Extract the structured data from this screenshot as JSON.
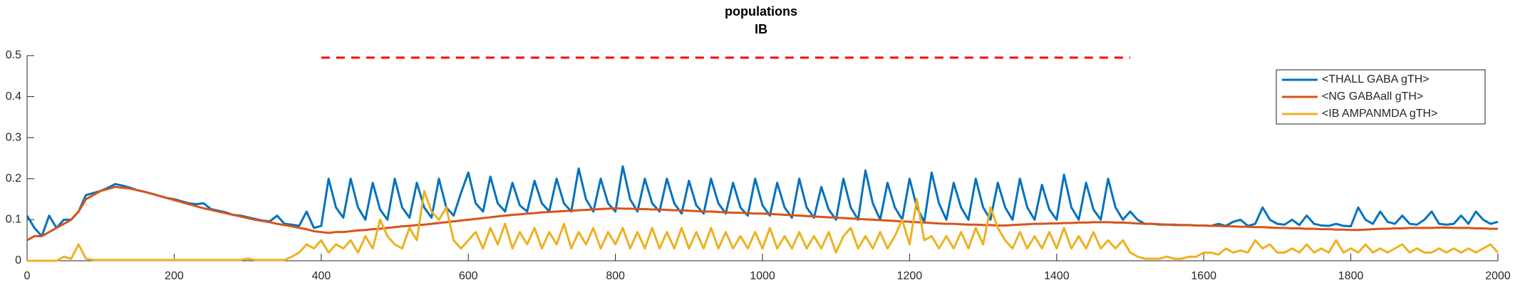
{
  "chart_data": {
    "type": "line",
    "title": "populations",
    "subtitle": "IB",
    "x": [
      0,
      10,
      20,
      30,
      40,
      50,
      60,
      70,
      80,
      90,
      100,
      110,
      120,
      130,
      140,
      150,
      160,
      170,
      180,
      190,
      200,
      210,
      220,
      230,
      240,
      250,
      260,
      270,
      280,
      290,
      300,
      310,
      320,
      330,
      340,
      350,
      360,
      370,
      380,
      390,
      400,
      410,
      420,
      430,
      440,
      450,
      460,
      470,
      480,
      490,
      500,
      510,
      520,
      530,
      540,
      550,
      560,
      570,
      580,
      590,
      600,
      610,
      620,
      630,
      640,
      650,
      660,
      670,
      680,
      690,
      700,
      710,
      720,
      730,
      740,
      750,
      760,
      770,
      780,
      790,
      800,
      810,
      820,
      830,
      840,
      850,
      860,
      870,
      880,
      890,
      900,
      910,
      920,
      930,
      940,
      950,
      960,
      970,
      980,
      990,
      1000,
      1010,
      1020,
      1030,
      1040,
      1050,
      1060,
      1070,
      1080,
      1090,
      1100,
      1110,
      1120,
      1130,
      1140,
      1150,
      1160,
      1170,
      1180,
      1190,
      1200,
      1210,
      1220,
      1230,
      1240,
      1250,
      1260,
      1270,
      1280,
      1290,
      1300,
      1310,
      1320,
      1330,
      1340,
      1350,
      1360,
      1370,
      1380,
      1390,
      1400,
      1410,
      1420,
      1430,
      1440,
      1450,
      1460,
      1470,
      1480,
      1490,
      1500,
      1510,
      1520,
      1530,
      1540,
      1550,
      1560,
      1570,
      1580,
      1590,
      1600,
      1610,
      1620,
      1630,
      1640,
      1650,
      1660,
      1670,
      1680,
      1690,
      1700,
      1710,
      1720,
      1730,
      1740,
      1750,
      1760,
      1770,
      1780,
      1790,
      1800,
      1810,
      1820,
      1830,
      1840,
      1850,
      1860,
      1870,
      1880,
      1890,
      1900,
      1910,
      1920,
      1930,
      1940,
      1950,
      1960,
      1970,
      1980,
      1990,
      2000
    ],
    "series": [
      {
        "name": "<THALL GABA gTH>",
        "color": "#0072bd",
        "values": [
          0.11,
          0.08,
          0.06,
          0.11,
          0.08,
          0.1,
          0.1,
          0.12,
          0.16,
          0.165,
          0.17,
          0.178,
          0.187,
          0.183,
          0.178,
          0.172,
          0.168,
          0.163,
          0.158,
          0.153,
          0.15,
          0.145,
          0.14,
          0.138,
          0.14,
          0.126,
          0.122,
          0.118,
          0.112,
          0.11,
          0.106,
          0.102,
          0.098,
          0.096,
          0.11,
          0.09,
          0.088,
          0.085,
          0.12,
          0.08,
          0.085,
          0.2,
          0.13,
          0.105,
          0.2,
          0.13,
          0.1,
          0.19,
          0.125,
          0.1,
          0.2,
          0.13,
          0.105,
          0.19,
          0.13,
          0.105,
          0.2,
          0.13,
          0.11,
          0.165,
          0.215,
          0.14,
          0.12,
          0.205,
          0.14,
          0.12,
          0.19,
          0.135,
          0.12,
          0.195,
          0.14,
          0.12,
          0.2,
          0.14,
          0.12,
          0.225,
          0.15,
          0.12,
          0.2,
          0.14,
          0.12,
          0.23,
          0.15,
          0.12,
          0.2,
          0.14,
          0.12,
          0.2,
          0.14,
          0.115,
          0.195,
          0.135,
          0.115,
          0.2,
          0.14,
          0.115,
          0.19,
          0.13,
          0.11,
          0.2,
          0.135,
          0.11,
          0.19,
          0.13,
          0.105,
          0.2,
          0.13,
          0.105,
          0.18,
          0.125,
          0.1,
          0.2,
          0.13,
          0.1,
          0.22,
          0.14,
          0.1,
          0.19,
          0.13,
          0.1,
          0.2,
          0.13,
          0.095,
          0.215,
          0.14,
          0.1,
          0.19,
          0.13,
          0.1,
          0.2,
          0.13,
          0.1,
          0.19,
          0.13,
          0.1,
          0.2,
          0.13,
          0.1,
          0.185,
          0.125,
          0.1,
          0.21,
          0.13,
          0.1,
          0.19,
          0.125,
          0.1,
          0.2,
          0.13,
          0.1,
          0.12,
          0.1,
          0.09,
          0.09,
          0.088,
          0.088,
          0.087,
          0.087,
          0.087,
          0.086,
          0.086,
          0.085,
          0.09,
          0.085,
          0.095,
          0.1,
          0.085,
          0.09,
          0.13,
          0.1,
          0.09,
          0.088,
          0.1,
          0.087,
          0.11,
          0.09,
          0.086,
          0.085,
          0.09,
          0.085,
          0.084,
          0.13,
          0.1,
          0.09,
          0.12,
          0.095,
          0.09,
          0.11,
          0.09,
          0.088,
          0.1,
          0.12,
          0.09,
          0.088,
          0.09,
          0.11,
          0.09,
          0.12,
          0.1,
          0.09,
          0.095
        ]
      },
      {
        "name": "<NG GABAall gTH>",
        "color": "#d95319",
        "values": [
          0.05,
          0.06,
          0.06,
          0.07,
          0.08,
          0.09,
          0.1,
          0.12,
          0.15,
          0.16,
          0.17,
          0.175,
          0.18,
          0.178,
          0.176,
          0.172,
          0.168,
          0.163,
          0.158,
          0.153,
          0.148,
          0.143,
          0.138,
          0.133,
          0.128,
          0.124,
          0.12,
          0.116,
          0.112,
          0.108,
          0.104,
          0.1,
          0.097,
          0.094,
          0.09,
          0.087,
          0.084,
          0.08,
          0.077,
          0.072,
          0.07,
          0.068,
          0.07,
          0.07,
          0.072,
          0.074,
          0.075,
          0.077,
          0.078,
          0.08,
          0.082,
          0.084,
          0.085,
          0.087,
          0.088,
          0.09,
          0.092,
          0.094,
          0.096,
          0.098,
          0.1,
          0.102,
          0.104,
          0.106,
          0.108,
          0.11,
          0.112,
          0.113,
          0.115,
          0.116,
          0.118,
          0.119,
          0.12,
          0.121,
          0.122,
          0.123,
          0.124,
          0.125,
          0.126,
          0.127,
          0.128,
          0.127,
          0.127,
          0.126,
          0.126,
          0.125,
          0.125,
          0.124,
          0.123,
          0.123,
          0.122,
          0.121,
          0.12,
          0.12,
          0.119,
          0.118,
          0.117,
          0.117,
          0.116,
          0.115,
          0.115,
          0.114,
          0.113,
          0.112,
          0.111,
          0.11,
          0.109,
          0.108,
          0.107,
          0.106,
          0.105,
          0.104,
          0.103,
          0.102,
          0.101,
          0.1,
          0.099,
          0.098,
          0.097,
          0.096,
          0.095,
          0.094,
          0.093,
          0.092,
          0.091,
          0.09,
          0.09,
          0.089,
          0.088,
          0.088,
          0.087,
          0.087,
          0.086,
          0.086,
          0.087,
          0.088,
          0.089,
          0.09,
          0.09,
          0.091,
          0.091,
          0.092,
          0.092,
          0.093,
          0.093,
          0.094,
          0.094,
          0.094,
          0.093,
          0.093,
          0.092,
          0.091,
          0.09,
          0.09,
          0.089,
          0.088,
          0.088,
          0.087,
          0.087,
          0.086,
          0.086,
          0.085,
          0.085,
          0.084,
          0.084,
          0.083,
          0.083,
          0.082,
          0.082,
          0.081,
          0.08,
          0.08,
          0.079,
          0.079,
          0.078,
          0.078,
          0.077,
          0.077,
          0.076,
          0.076,
          0.075,
          0.075,
          0.076,
          0.077,
          0.078,
          0.078,
          0.079,
          0.079,
          0.08,
          0.08,
          0.08,
          0.08,
          0.081,
          0.081,
          0.08,
          0.08,
          0.08,
          0.079,
          0.079,
          0.078,
          0.078
        ]
      },
      {
        "name": "<IB AMPANMDA gTH>",
        "color": "#edb120",
        "values": [
          0,
          0,
          0,
          0,
          0,
          0.01,
          0.005,
          0.04,
          0.005,
          0.002,
          0.002,
          0.002,
          0.002,
          0.002,
          0.002,
          0.002,
          0.002,
          0.002,
          0.002,
          0.002,
          0.002,
          0.002,
          0.002,
          0.002,
          0.002,
          0.002,
          0.002,
          0.002,
          0.002,
          0.002,
          0.005,
          0.002,
          0.002,
          0.002,
          0.002,
          0.002,
          0.01,
          0.02,
          0.04,
          0.03,
          0.05,
          0.02,
          0.04,
          0.03,
          0.05,
          0.02,
          0.06,
          0.03,
          0.1,
          0.06,
          0.04,
          0.03,
          0.08,
          0.05,
          0.17,
          0.12,
          0.1,
          0.13,
          0.05,
          0.03,
          0.05,
          0.07,
          0.03,
          0.08,
          0.04,
          0.09,
          0.03,
          0.07,
          0.04,
          0.08,
          0.03,
          0.07,
          0.04,
          0.09,
          0.03,
          0.07,
          0.04,
          0.08,
          0.03,
          0.07,
          0.04,
          0.08,
          0.03,
          0.07,
          0.03,
          0.08,
          0.03,
          0.07,
          0.03,
          0.08,
          0.03,
          0.07,
          0.03,
          0.08,
          0.03,
          0.07,
          0.03,
          0.06,
          0.03,
          0.07,
          0.03,
          0.08,
          0.03,
          0.06,
          0.03,
          0.07,
          0.03,
          0.06,
          0.03,
          0.07,
          0.02,
          0.06,
          0.08,
          0.03,
          0.06,
          0.03,
          0.07,
          0.03,
          0.06,
          0.1,
          0.04,
          0.15,
          0.05,
          0.06,
          0.03,
          0.06,
          0.03,
          0.07,
          0.03,
          0.08,
          0.04,
          0.13,
          0.08,
          0.05,
          0.03,
          0.07,
          0.03,
          0.06,
          0.03,
          0.07,
          0.03,
          0.08,
          0.03,
          0.06,
          0.03,
          0.07,
          0.03,
          0.05,
          0.03,
          0.05,
          0.02,
          0.01,
          0.005,
          0.005,
          0.005,
          0.01,
          0.005,
          0.005,
          0.01,
          0.01,
          0.02,
          0.02,
          0.015,
          0.03,
          0.02,
          0.025,
          0.02,
          0.05,
          0.03,
          0.04,
          0.02,
          0.02,
          0.03,
          0.02,
          0.04,
          0.02,
          0.03,
          0.02,
          0.05,
          0.02,
          0.03,
          0.02,
          0.04,
          0.02,
          0.03,
          0.02,
          0.03,
          0.04,
          0.02,
          0.03,
          0.02,
          0.02,
          0.03,
          0.02,
          0.03,
          0.02,
          0.03,
          0.02,
          0.03,
          0.04,
          0.02
        ]
      }
    ],
    "hline": {
      "xmin": 400,
      "xmax": 1500,
      "y": 0.495,
      "color": "#ff0000"
    },
    "xlim": [
      0,
      2000
    ],
    "xticks": [
      0,
      200,
      400,
      600,
      800,
      1000,
      1200,
      1400,
      1600,
      1800,
      2000
    ],
    "ylim": [
      0,
      0.5
    ],
    "yticks": [
      0,
      0.1,
      0.2,
      0.3,
      0.4,
      0.5
    ],
    "legend": "upper right"
  }
}
